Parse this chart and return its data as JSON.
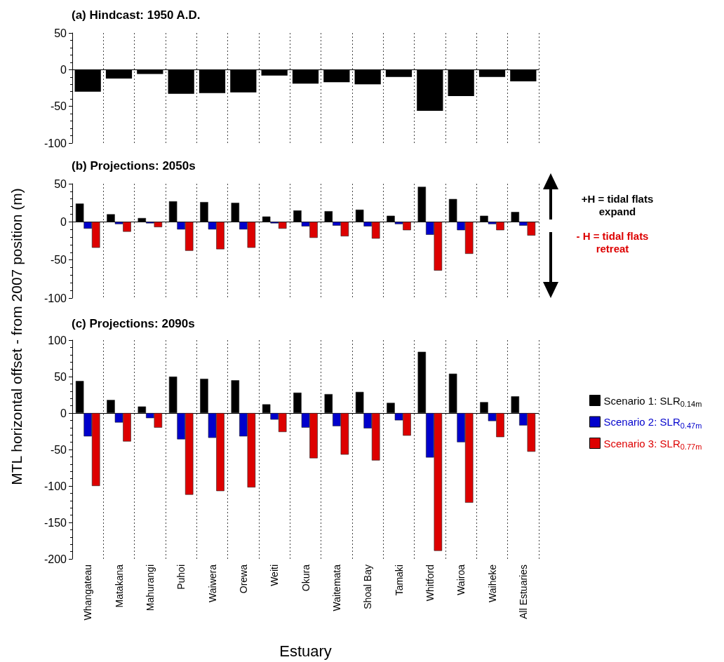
{
  "chart_data": [
    {
      "type": "bar",
      "title": "(a) Hindcast: 1950 A.D.",
      "categories": [
        null,
        null,
        null,
        null,
        null,
        null,
        null,
        null,
        null,
        null,
        null,
        null,
        null,
        null,
        null
      ],
      "series": [
        {
          "color": "#000000",
          "values": [
            -30,
            -12,
            -6,
            -33,
            -32,
            -31,
            -8,
            -19,
            -17,
            -20,
            -10,
            -56,
            -36,
            -10,
            -16
          ]
        }
      ],
      "ylim": [
        -100,
        50
      ],
      "yticks": [
        -100,
        -50,
        0,
        50
      ],
      "grid": "x"
    },
    {
      "type": "bar",
      "title": "(b) Projections: 2050s",
      "ylabel": "MTL horizontal offset - from 2007 position (m)",
      "categories": [
        null,
        null,
        null,
        null,
        null,
        null,
        null,
        null,
        null,
        null,
        null,
        null,
        null,
        null,
        null
      ],
      "series": [
        {
          "color": "#000000",
          "values": [
            24,
            10,
            5,
            27,
            26,
            25,
            7,
            15,
            14,
            16,
            8,
            46,
            30,
            8,
            13
          ]
        },
        {
          "color": "#0000cc",
          "values": [
            -9,
            -3,
            -2,
            -10,
            -10,
            -10,
            -2,
            -6,
            -5,
            -6,
            -3,
            -17,
            -11,
            -3,
            -5
          ]
        },
        {
          "color": "#dd0000",
          "values": [
            -34,
            -13,
            -7,
            -38,
            -36,
            -34,
            -9,
            -21,
            -19,
            -22,
            -11,
            -64,
            -42,
            -11,
            -18
          ]
        }
      ],
      "ylim": [
        -100,
        50
      ],
      "yticks": [
        -100,
        -50,
        0,
        50
      ],
      "grid": "x",
      "annotations": [
        "+H = tidal flats\nexpand",
        "- H = tidal flats\nretreat"
      ]
    },
    {
      "type": "bar",
      "title": "(c) Projections: 2090s",
      "xlabel": "Estuary",
      "categories": [
        "Whangateau",
        "Matakana",
        "Mahurangi",
        "Puhoi",
        "Waiwera",
        "Orewa",
        "Weiti",
        "Okura",
        "Waitemata",
        "Shoal Bay",
        "Tamaki",
        "Whitford",
        "Wairoa",
        "Waiheke",
        "All Estuaries"
      ],
      "series": [
        {
          "name": "Scenario 1: SLR$_{0.14m}$",
          "color": "#000000",
          "values": [
            44,
            18,
            9,
            50,
            47,
            45,
            12,
            28,
            26,
            29,
            14,
            84,
            54,
            15,
            23
          ]
        },
        {
          "name": "Scenario 2: SLR$_{0.47m}$",
          "color": "#0000cc",
          "values": [
            -32,
            -13,
            -7,
            -36,
            -34,
            -32,
            -9,
            -20,
            -18,
            -21,
            -10,
            -61,
            -40,
            -11,
            -17
          ]
        },
        {
          "name": "Scenario 3: SLR$_{0.77m}$",
          "color": "#dd0000",
          "values": [
            -100,
            -39,
            -20,
            -112,
            -107,
            -102,
            -26,
            -62,
            -57,
            -65,
            -31,
            -189,
            -123,
            -33,
            -53
          ]
        }
      ],
      "ylim": [
        -200,
        100
      ],
      "yticks": [
        -200,
        -150,
        -100,
        -50,
        0,
        50,
        100
      ],
      "grid": "x",
      "legend": "right"
    }
  ]
}
